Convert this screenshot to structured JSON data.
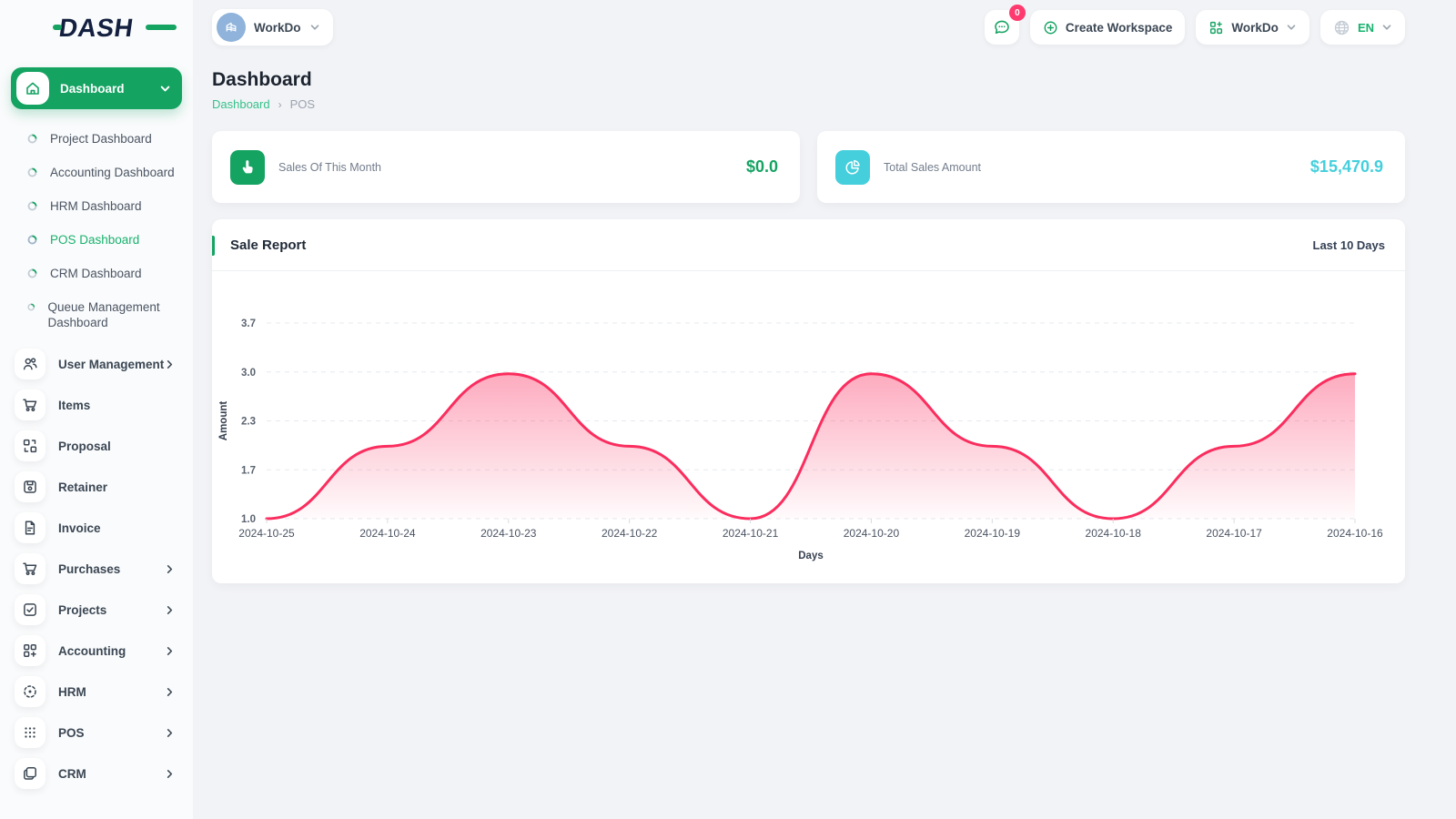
{
  "brand": {
    "logo_text": "DASH"
  },
  "topbar": {
    "workspace_switcher": {
      "label": "WorkDo"
    },
    "messages_badge": "0",
    "create_workspace_label": "Create Workspace",
    "workdo_menu_label": "WorkDo",
    "language": "EN"
  },
  "sidebar": {
    "active_item": {
      "label": "Dashboard"
    },
    "children": [
      {
        "label": "Project Dashboard",
        "active": false
      },
      {
        "label": "Accounting Dashboard",
        "active": false
      },
      {
        "label": "HRM Dashboard",
        "active": false
      },
      {
        "label": "POS Dashboard",
        "active": true
      },
      {
        "label": "CRM Dashboard",
        "active": false
      },
      {
        "label": "Queue Management Dashboard",
        "active": false
      }
    ],
    "items": [
      {
        "label": "User Management",
        "has_chevron": true,
        "icon": "users-icon"
      },
      {
        "label": "Items",
        "has_chevron": false,
        "icon": "cart-icon"
      },
      {
        "label": "Proposal",
        "has_chevron": false,
        "icon": "proposal-grid-icon"
      },
      {
        "label": "Retainer",
        "has_chevron": false,
        "icon": "retainer-save-icon"
      },
      {
        "label": "Invoice",
        "has_chevron": false,
        "icon": "invoice-file-icon"
      },
      {
        "label": "Purchases",
        "has_chevron": true,
        "icon": "cart-icon"
      },
      {
        "label": "Projects",
        "has_chevron": true,
        "icon": "check-square-icon"
      },
      {
        "label": "Accounting",
        "has_chevron": true,
        "icon": "grid-plus-icon"
      },
      {
        "label": "HRM",
        "has_chevron": true,
        "icon": "target-dots-icon"
      },
      {
        "label": "POS",
        "has_chevron": true,
        "icon": "dots-grid-icon"
      },
      {
        "label": "CRM",
        "has_chevron": true,
        "icon": "windows-icon"
      }
    ]
  },
  "page": {
    "title": "Dashboard",
    "breadcrumb": {
      "parent": "Dashboard",
      "current": "POS"
    }
  },
  "stats": [
    {
      "label": "Sales Of This Month",
      "value": "$0.0",
      "accent": "#15a362",
      "icon": "hand-tap-icon"
    },
    {
      "label": "Total Sales Amount",
      "value": "$15,470.9",
      "accent": "#45cfdc",
      "icon": "pie-chart-icon"
    }
  ],
  "chart_card": {
    "title": "Sale Report",
    "range_label": "Last 10 Days"
  },
  "chart_data": {
    "type": "area",
    "title": "Sale Report",
    "x": [
      "2024-10-25",
      "2024-10-24",
      "2024-10-23",
      "2024-10-22",
      "2024-10-21",
      "2024-10-20",
      "2024-10-19",
      "2024-10-18",
      "2024-10-17",
      "2024-10-16"
    ],
    "values": [
      1.0,
      2.0,
      3.0,
      2.0,
      1.0,
      3.0,
      2.0,
      1.0,
      2.0,
      3.0
    ],
    "xlabel": "Days",
    "ylabel": "Amount",
    "ylim": [
      1.0,
      3.7
    ],
    "yticks": [
      {
        "v": 1.0,
        "label": "1.0"
      },
      {
        "v": 1.675,
        "label": "1.7"
      },
      {
        "v": 2.35,
        "label": "2.3"
      },
      {
        "v": 3.025,
        "label": "3.0"
      },
      {
        "v": 3.7,
        "label": "3.7"
      }
    ],
    "grid": "dashed-horizontal",
    "legend": "none",
    "line_color": "#fa2d5e",
    "fill_top": "rgba(250,45,94,0.40)",
    "fill_bottom": "rgba(250,45,94,0.02)",
    "axis_text_color": "#4a5362",
    "grid_color": "#e7e9ee"
  }
}
